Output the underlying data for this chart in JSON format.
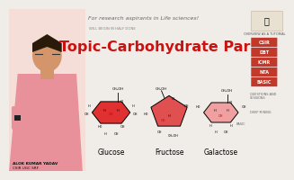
{
  "bg_color": "#f0ede8",
  "title_text": "Topic-Carbohydrate Part-1",
  "title_color": "#cc1111",
  "title_fontsize": 11.5,
  "header_text": "For research aspirants in Life sciences!",
  "header_color": "#666666",
  "header_fontsize": 4.5,
  "footer_name": "ALOK KUMAR YADAV",
  "footer_sub": "CSIR UGC SRF",
  "will_text": "WILL BEGIN IN HALF DONE",
  "sugar_names": [
    "Glucose",
    "Fructose",
    "Galactose"
  ],
  "glucose_color": "#e03030",
  "fructose_color": "#e05050",
  "galactose_color": "#f0a0a0",
  "sidebar_items": [
    "CSIR",
    "DBT",
    "ICMR",
    "NTA",
    "BASIC"
  ],
  "sidebar_color": "#c0392b",
  "overview_label": "OVERVIEW AS A TUTORIAL",
  "skin_color": "#d4956a",
  "shirt_color": "#e8919b",
  "hair_color": "#2a1a0a",
  "person_bg": "#f5d5d0"
}
